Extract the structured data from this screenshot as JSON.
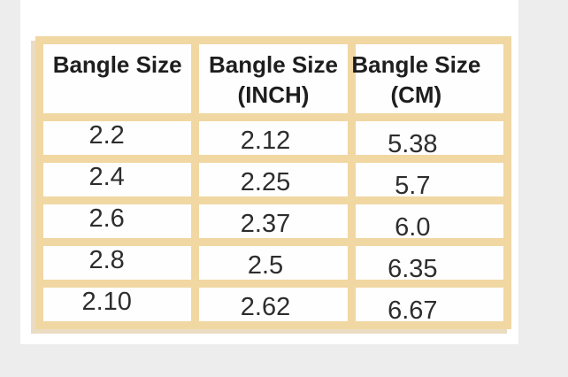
{
  "canvas": {
    "background_color": "#EDEDED",
    "sheet_color": "#FFFFFF",
    "table_border_color": "#F1D7A2",
    "header_text_color": "#1E1E1E",
    "cell_text_color": "#2D2D2D"
  },
  "table": {
    "columns": [
      {
        "title": "Bangle Size",
        "subtitle": ""
      },
      {
        "title": "Bangle Size",
        "subtitle": "(INCH)"
      },
      {
        "title": "Bangle Size",
        "subtitle": "(CM)"
      }
    ],
    "rows": [
      {
        "size": "2.2",
        "inch": "2.12",
        "cm": "5.38"
      },
      {
        "size": "2.4",
        "inch": "2.25",
        "cm": "5.7"
      },
      {
        "size": "2.6",
        "inch": "2.37",
        "cm": "6.0"
      },
      {
        "size": "2.8",
        "inch": "2.5",
        "cm": "6.35"
      },
      {
        "size": "2.10",
        "inch": "2.62",
        "cm": "6.67"
      }
    ]
  },
  "chart_data": {
    "type": "table",
    "columns": [
      "Bangle Size",
      "Bangle Size (INCH)",
      "Bangle Size (CM)"
    ],
    "rows": [
      [
        "2.2",
        "2.12",
        "5.38"
      ],
      [
        "2.4",
        "2.25",
        "5.7"
      ],
      [
        "2.6",
        "2.37",
        "6.0"
      ],
      [
        "2.8",
        "2.5",
        "6.35"
      ],
      [
        "2.10",
        "2.62",
        "6.67"
      ]
    ]
  }
}
